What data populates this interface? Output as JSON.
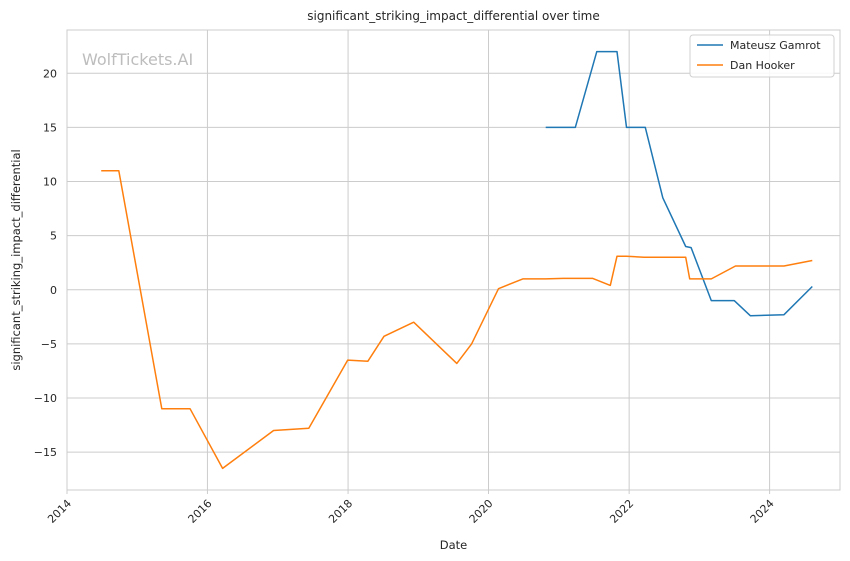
{
  "chart_data": {
    "type": "line",
    "title": "significant_striking_impact_differential over time",
    "xlabel": "Date",
    "ylabel": "significant_striking_impact_differential",
    "watermark": "WolfTickets.AI",
    "xlim": [
      "2014-01-01",
      "2025-01-01"
    ],
    "ylim": [
      -18.5,
      24
    ],
    "x_ticks": [
      "2014",
      "2016",
      "2018",
      "2020",
      "2022",
      "2024"
    ],
    "y_ticks": [
      20,
      15,
      10,
      5,
      0,
      -5,
      -10,
      -15
    ],
    "grid": true,
    "legend_position": "top-right",
    "series": [
      {
        "name": "Mateusz Gamrot",
        "color": "#1f77b4",
        "points": [
          [
            "2020-10-24",
            15.0
          ],
          [
            "2021-03-27",
            15.0
          ],
          [
            "2021-07-17",
            22.0
          ],
          [
            "2021-10-30",
            22.0
          ],
          [
            "2021-12-18",
            15.0
          ],
          [
            "2022-03-26",
            15.0
          ],
          [
            "2022-06-25",
            8.5
          ],
          [
            "2022-10-22",
            4.0
          ],
          [
            "2022-11-19",
            3.9
          ],
          [
            "2023-03-04",
            -1.0
          ],
          [
            "2023-07-01",
            -1.0
          ],
          [
            "2023-09-23",
            -2.4
          ],
          [
            "2024-03-16",
            -2.3
          ],
          [
            "2024-08-10",
            0.3
          ]
        ]
      },
      {
        "name": "Dan Hooker",
        "color": "#ff7f0e",
        "points": [
          [
            "2014-06-28",
            11.0
          ],
          [
            "2014-09-27",
            11.0
          ],
          [
            "2015-05-09",
            -11.0
          ],
          [
            "2015-10-03",
            -11.0
          ],
          [
            "2016-03-20",
            -16.5
          ],
          [
            "2016-12-10",
            -13.0
          ],
          [
            "2017-06-11",
            -12.8
          ],
          [
            "2017-12-30",
            -6.5
          ],
          [
            "2018-04-14",
            -6.6
          ],
          [
            "2018-07-07",
            -4.3
          ],
          [
            "2018-12-08",
            -3.0
          ],
          [
            "2019-07-20",
            -6.8
          ],
          [
            "2019-10-05",
            -5.0
          ],
          [
            "2020-02-22",
            0.1
          ],
          [
            "2020-06-27",
            1.0
          ],
          [
            "2020-10-24",
            1.0
          ],
          [
            "2021-01-23",
            1.05
          ],
          [
            "2021-06-26",
            1.05
          ],
          [
            "2021-09-25",
            0.4
          ],
          [
            "2021-10-30",
            3.1
          ],
          [
            "2021-12-18",
            3.1
          ],
          [
            "2022-03-19",
            3.0
          ],
          [
            "2022-07-09",
            3.0
          ],
          [
            "2022-10-22",
            3.0
          ],
          [
            "2022-11-12",
            1.0
          ],
          [
            "2023-03-04",
            1.0
          ],
          [
            "2023-07-08",
            2.2
          ],
          [
            "2023-09-23",
            2.2
          ],
          [
            "2024-03-16",
            2.2
          ],
          [
            "2024-08-10",
            2.7
          ]
        ]
      }
    ]
  }
}
